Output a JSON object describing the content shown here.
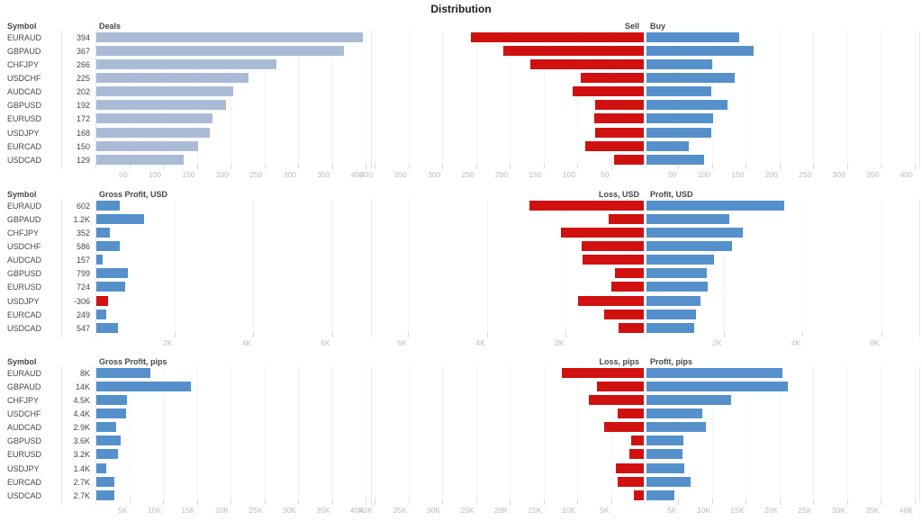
{
  "title": "Distribution",
  "symbol_header": "Symbol",
  "colors": {
    "deals_bar": "#aabbd6",
    "profit_bar": "#5590ca",
    "loss_bar": "#d11010",
    "text": "#45474f",
    "axis_text": "#b8bcc4"
  },
  "chart_data": [
    {
      "type": "bar",
      "slug": "deals",
      "title": "Deals",
      "categories": [
        "EURAUD",
        "GBPAUD",
        "CHFJPY",
        "USDCHF",
        "AUDCAD",
        "GBPUSD",
        "EURUSD",
        "USDJPY",
        "EURCAD",
        "USDCAD"
      ],
      "values": [
        394,
        367,
        266,
        225,
        202,
        192,
        172,
        168,
        150,
        129
      ],
      "value_labels": [
        "394",
        "367",
        "266",
        "225",
        "202",
        "192",
        "172",
        "168",
        "150",
        "129"
      ],
      "bar_color": "#aabbd6",
      "neg_color": "#d11010",
      "xlim": [
        0,
        408
      ],
      "tick_values": [
        50,
        100,
        150,
        200,
        250,
        300,
        350,
        400
      ],
      "tick_labels": [
        "50",
        "100",
        "150",
        "200",
        "250",
        "300",
        "350",
        "400"
      ],
      "grid": true,
      "legend_position": "none"
    },
    {
      "type": "diverging_bar",
      "slug": "sell-buy",
      "categories": [
        "EURAUD",
        "GBPAUD",
        "CHFJPY",
        "USDCHF",
        "AUDCAD",
        "GBPUSD",
        "EURUSD",
        "USDJPY",
        "EURCAD",
        "USDCAD"
      ],
      "series": [
        {
          "name": "Sell",
          "side": "left",
          "color": "#d11010",
          "values": [
            256,
            208,
            168,
            94,
            106,
            72,
            73,
            72,
            87,
            44
          ]
        },
        {
          "name": "Buy",
          "side": "right",
          "color": "#5590ca",
          "values": [
            138,
            159,
            98,
            131,
            96,
            120,
            99,
            96,
            63,
            85
          ]
        }
      ],
      "half_max": 407,
      "tick_values": [
        50,
        100,
        150,
        200,
        250,
        300,
        350,
        400
      ],
      "tick_labels": [
        "50",
        "100",
        "150",
        "200",
        "250",
        "300",
        "350",
        "400"
      ],
      "grid": true,
      "legend_position": "top-center"
    },
    {
      "type": "bar",
      "slug": "gross-profit-usd",
      "title": "Gross Profit, USD",
      "categories": [
        "EURAUD",
        "GBPAUD",
        "CHFJPY",
        "USDCHF",
        "AUDCAD",
        "GBPUSD",
        "EURUSD",
        "USDJPY",
        "EURCAD",
        "USDCAD"
      ],
      "values": [
        602,
        1200,
        352,
        586,
        157,
        799,
        724,
        -306,
        249,
        547
      ],
      "value_labels": [
        "602",
        "1.2K",
        "352",
        "586",
        "157",
        "799",
        "724",
        "-306",
        "249",
        "547"
      ],
      "bar_color": "#5590ca",
      "neg_color": "#d11010",
      "xlim": [
        0,
        6990
      ],
      "tick_values": [
        2000,
        4000,
        6000
      ],
      "tick_labels": [
        "2K",
        "4K",
        "6K"
      ],
      "grid": true,
      "legend_position": "none"
    },
    {
      "type": "diverging_bar",
      "slug": "loss-profit-usd",
      "categories": [
        "EURAUD",
        "GBPAUD",
        "CHFJPY",
        "USDCHF",
        "AUDCAD",
        "GBPUSD",
        "EURUSD",
        "USDJPY",
        "EURCAD",
        "USDCAD"
      ],
      "series": [
        {
          "name": "Loss, USD",
          "side": "left",
          "color": "#d11010",
          "values": [
            2900,
            900,
            2100,
            1570,
            1560,
            720,
            830,
            1670,
            1000,
            650
          ]
        },
        {
          "name": "Profit, USD",
          "side": "right",
          "color": "#5590ca",
          "values": [
            3500,
            2100,
            2450,
            2160,
            1720,
            1520,
            1550,
            1360,
            1250,
            1200
          ]
        }
      ],
      "half_max": 6970,
      "tick_values": [
        2000,
        4000,
        6000
      ],
      "tick_labels": [
        "2K",
        "4K",
        "6K"
      ],
      "grid": true,
      "legend_position": "top-center"
    },
    {
      "type": "bar",
      "slug": "gross-profit-pips",
      "title": "Gross Profit, pips",
      "categories": [
        "EURAUD",
        "GBPAUD",
        "CHFJPY",
        "USDCHF",
        "AUDCAD",
        "GBPUSD",
        "EURUSD",
        "USDJPY",
        "EURCAD",
        "USDCAD"
      ],
      "values": [
        8000,
        14000,
        4500,
        4400,
        2900,
        3600,
        3200,
        1400,
        2700,
        2700
      ],
      "value_labels": [
        "8K",
        "14K",
        "4.5K",
        "4.4K",
        "2.9K",
        "3.6K",
        "3.2K",
        "1.4K",
        "2.7K",
        "2.7K"
      ],
      "bar_color": "#5590ca",
      "neg_color": "#d11010",
      "xlim": [
        0,
        40800
      ],
      "tick_values": [
        5000,
        10000,
        15000,
        20000,
        25000,
        30000,
        35000,
        40000
      ],
      "tick_labels": [
        "5K",
        "10K",
        "15K",
        "20K",
        "25K",
        "30K",
        "35K",
        "40K"
      ],
      "grid": true,
      "legend_position": "none"
    },
    {
      "type": "diverging_bar",
      "slug": "loss-profit-pips",
      "categories": [
        "EURAUD",
        "GBPAUD",
        "CHFJPY",
        "USDCHF",
        "AUDCAD",
        "GBPUSD",
        "EURUSD",
        "USDJPY",
        "EURCAD",
        "USDCAD"
      ],
      "series": [
        {
          "name": "Loss, pips",
          "side": "left",
          "color": "#d11010",
          "values": [
            12100,
            6900,
            8100,
            3900,
            5900,
            1900,
            2100,
            4200,
            3900,
            1500
          ]
        },
        {
          "name": "Profit, pips",
          "side": "right",
          "color": "#5590ca",
          "values": [
            20100,
            20900,
            12600,
            8300,
            8800,
            5500,
            5300,
            5600,
            6600,
            4200
          ]
        }
      ],
      "half_max": 40670,
      "tick_values": [
        5000,
        10000,
        15000,
        20000,
        25000,
        30000,
        35000,
        40000
      ],
      "tick_labels": [
        "5K",
        "10K",
        "15K",
        "20K",
        "25K",
        "30K",
        "35K",
        "40K"
      ],
      "grid": true,
      "legend_position": "top-center"
    }
  ]
}
